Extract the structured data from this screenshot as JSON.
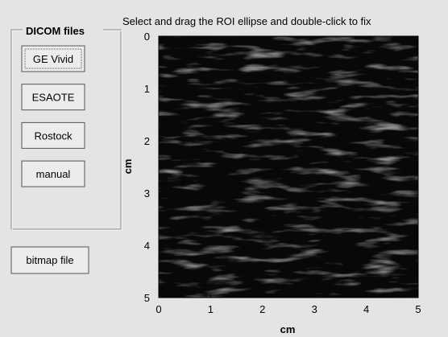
{
  "panel": {
    "title": "DICOM files",
    "buttons": [
      "GE Vivid",
      "ESAOTE",
      "Rostock",
      "manual"
    ]
  },
  "bitmap_button": "bitmap file",
  "axes": {
    "title": "Select and drag the ROI ellipse and double-click to fix",
    "xlabel": "cm",
    "ylabel": "cm",
    "xticks": [
      0,
      1,
      2,
      3,
      4,
      5
    ],
    "yticks": [
      0,
      1,
      2,
      3,
      4,
      5
    ]
  }
}
